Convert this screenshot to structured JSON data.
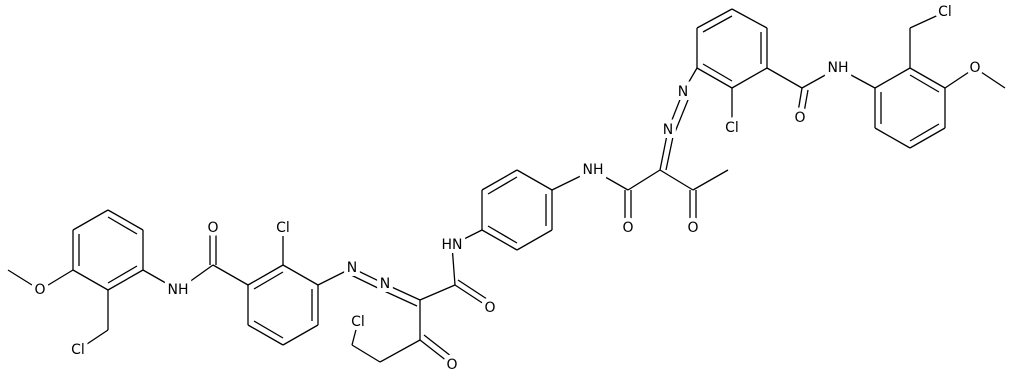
{
  "atoms": [
    "Cl",
    "O",
    "NH",
    "O",
    "Cl",
    "N",
    "N",
    "NH",
    "O",
    "O",
    "HN",
    "O",
    "N",
    "N",
    "Cl",
    "O",
    "NH",
    "O",
    "Cl",
    "Cl",
    "O"
  ]
}
